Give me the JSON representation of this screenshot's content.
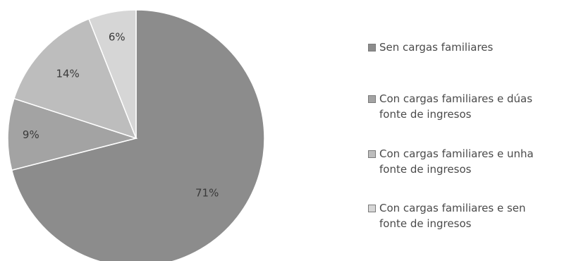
{
  "chart_data": {
    "type": "pie",
    "title": "",
    "categories": [
      "Sen cargas familiares",
      "Con cargas familiares e dúas\nfonte de ingresos",
      "Con cargas familiares e unha\nfonte de ingresos",
      "Con cargas familiares e sen\nfonte de ingresos"
    ],
    "values": [
      71,
      9,
      14,
      6
    ],
    "value_labels": [
      "71%",
      "9%",
      "14%",
      "6%"
    ],
    "colors": [
      "#8c8c8c",
      "#a3a3a3",
      "#bdbdbd",
      "#d6d6d6"
    ],
    "legend_position": "right",
    "start_angle": "12 o'clock",
    "direction": "clockwise"
  }
}
